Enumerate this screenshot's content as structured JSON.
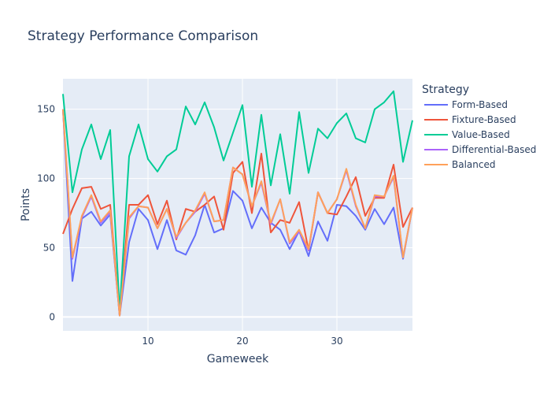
{
  "chart_data": {
    "type": "line",
    "title": "Strategy Performance Comparison",
    "xlabel": "Gameweek",
    "ylabel": "Points",
    "xlim": [
      1,
      38
    ],
    "ylim": [
      -10,
      172
    ],
    "x_ticks": [
      10,
      20,
      30
    ],
    "y_ticks": [
      0,
      50,
      100,
      150
    ],
    "grid": true,
    "legend_title": "Strategy",
    "legend_position": "right",
    "x": [
      1,
      2,
      3,
      4,
      5,
      6,
      7,
      8,
      9,
      10,
      11,
      12,
      13,
      14,
      15,
      16,
      17,
      18,
      19,
      20,
      21,
      22,
      23,
      24,
      25,
      26,
      27,
      28,
      29,
      30,
      31,
      32,
      33,
      34,
      35,
      36,
      37,
      38
    ],
    "series": [
      {
        "name": "Form-Based",
        "color": "#636efa",
        "values": [
          150,
          26,
          71,
          76,
          66,
          74,
          1,
          54,
          78,
          70,
          49,
          70,
          48,
          45,
          59,
          81,
          61,
          64,
          91,
          84,
          64,
          79,
          68,
          63,
          49,
          62,
          44,
          69,
          55,
          81,
          80,
          73,
          63,
          78,
          67,
          79,
          42,
          79
        ]
      },
      {
        "name": "Fixture-Based",
        "color": "#ef553b",
        "values": [
          60,
          78,
          93,
          94,
          78,
          81,
          2,
          81,
          81,
          88,
          67,
          84,
          56,
          78,
          76,
          81,
          87,
          63,
          104,
          112,
          75,
          118,
          61,
          70,
          68,
          83,
          48,
          90,
          75,
          74,
          87,
          101,
          73,
          86,
          86,
          110,
          65,
          79
        ]
      },
      {
        "name": "Value-Based",
        "color": "#00cc96",
        "values": [
          161,
          90,
          121,
          139,
          114,
          135,
          4,
          116,
          139,
          114,
          105,
          116,
          121,
          152,
          139,
          155,
          137,
          113,
          133,
          153,
          94,
          146,
          95,
          132,
          89,
          148,
          104,
          136,
          129,
          140,
          147,
          129,
          126,
          150,
          155,
          163,
          112,
          142
        ]
      },
      {
        "name": "Differential-Based",
        "color": "#ab63fa",
        "values": [
          149,
          42,
          72,
          87,
          68,
          76,
          1,
          71,
          80,
          79,
          64,
          78,
          57,
          68,
          76,
          89,
          69,
          70,
          108,
          103,
          80,
          97,
          67,
          85,
          53,
          62,
          48,
          90,
          75,
          85,
          106,
          80,
          64,
          87,
          87,
          101,
          43,
          79
        ]
      },
      {
        "name": "Balanced",
        "color": "#ffa15a",
        "values": [
          150,
          43,
          73,
          88,
          69,
          77,
          1,
          72,
          80,
          79,
          64,
          78,
          58,
          68,
          77,
          90,
          69,
          70,
          108,
          103,
          80,
          98,
          68,
          85,
          54,
          63,
          49,
          90,
          75,
          85,
          107,
          81,
          64,
          88,
          87,
          102,
          43,
          79
        ]
      }
    ]
  }
}
